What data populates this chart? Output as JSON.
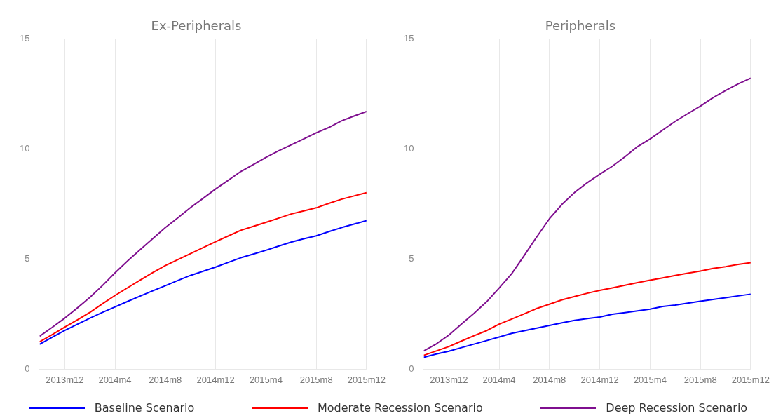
{
  "chart_data": [
    {
      "type": "line",
      "title": "Ex-Peripherals",
      "categories": [
        null,
        null,
        "2013m12",
        null,
        null,
        null,
        "2014m4",
        null,
        null,
        null,
        "2014m8",
        null,
        null,
        null,
        "2014m12",
        null,
        null,
        null,
        "2015m4",
        null,
        null,
        null,
        "2015m8",
        null,
        null,
        null,
        "2015m12"
      ],
      "ylim": [
        0,
        15
      ],
      "yticks": [
        0,
        5,
        10,
        15
      ],
      "grid": true,
      "legend": "bottom",
      "marker": "none",
      "line_style": "solid",
      "series": [
        {
          "name": "Baseline Scenario",
          "color": "#0000ff",
          "values": [
            1.13,
            1.45,
            1.76,
            2.04,
            2.32,
            2.58,
            2.83,
            3.08,
            3.32,
            3.56,
            3.79,
            4.03,
            4.26,
            4.45,
            4.64,
            4.85,
            5.06,
            5.23,
            5.4,
            5.59,
            5.77,
            5.92,
            6.06,
            6.25,
            6.43,
            6.59,
            6.75
          ]
        },
        {
          "name": "Moderate Recession Scenario",
          "color": "#ff0000",
          "values": [
            1.24,
            1.57,
            1.91,
            2.24,
            2.58,
            2.97,
            3.35,
            3.7,
            4.05,
            4.39,
            4.71,
            4.98,
            5.25,
            5.52,
            5.79,
            6.05,
            6.31,
            6.49,
            6.67,
            6.86,
            7.05,
            7.19,
            7.33,
            7.53,
            7.72,
            7.87,
            8.02
          ]
        },
        {
          "name": "Deep Recession Scenario",
          "color": "#7f0f8f",
          "values": [
            1.5,
            1.9,
            2.32,
            2.78,
            3.26,
            3.8,
            4.38,
            4.92,
            5.43,
            5.93,
            6.43,
            6.88,
            7.34,
            7.76,
            8.19,
            8.58,
            8.98,
            9.3,
            9.62,
            9.92,
            10.19,
            10.46,
            10.74,
            10.98,
            11.28,
            11.5,
            11.71
          ]
        }
      ]
    },
    {
      "type": "line",
      "title": "Peripherals",
      "categories": [
        null,
        null,
        "2013m12",
        null,
        null,
        null,
        "2014m4",
        null,
        null,
        null,
        "2014m8",
        null,
        null,
        null,
        "2014m12",
        null,
        null,
        null,
        "2015m4",
        null,
        null,
        null,
        "2015m8",
        null,
        null,
        null,
        "2015m12"
      ],
      "ylim": [
        0,
        15
      ],
      "yticks": [
        0,
        5,
        10,
        15
      ],
      "grid": true,
      "marker": "none",
      "line_style": "solid",
      "series": [
        {
          "color": "#0000ff",
          "values": [
            0.54,
            0.69,
            0.82,
            0.98,
            1.14,
            1.3,
            1.46,
            1.63,
            1.75,
            1.87,
            1.99,
            2.11,
            2.22,
            2.3,
            2.37,
            2.5,
            2.57,
            2.65,
            2.73,
            2.85,
            2.91,
            3.0,
            3.09,
            3.17,
            3.25,
            3.33,
            3.41
          ]
        },
        {
          "color": "#ff0000",
          "values": [
            0.63,
            0.83,
            1.03,
            1.28,
            1.52,
            1.75,
            2.05,
            2.28,
            2.52,
            2.76,
            2.95,
            3.15,
            3.3,
            3.45,
            3.58,
            3.69,
            3.81,
            3.93,
            4.04,
            4.15,
            4.26,
            4.36,
            4.46,
            4.58,
            4.66,
            4.76,
            4.84
          ]
        },
        {
          "color": "#7f0f8f",
          "values": [
            0.83,
            1.15,
            1.55,
            2.05,
            2.54,
            3.06,
            3.69,
            4.34,
            5.17,
            6.02,
            6.84,
            7.49,
            8.03,
            8.47,
            8.86,
            9.22,
            9.65,
            10.11,
            10.46,
            10.86,
            11.26,
            11.61,
            11.95,
            12.33,
            12.66,
            12.96,
            13.22
          ]
        }
      ]
    }
  ]
}
